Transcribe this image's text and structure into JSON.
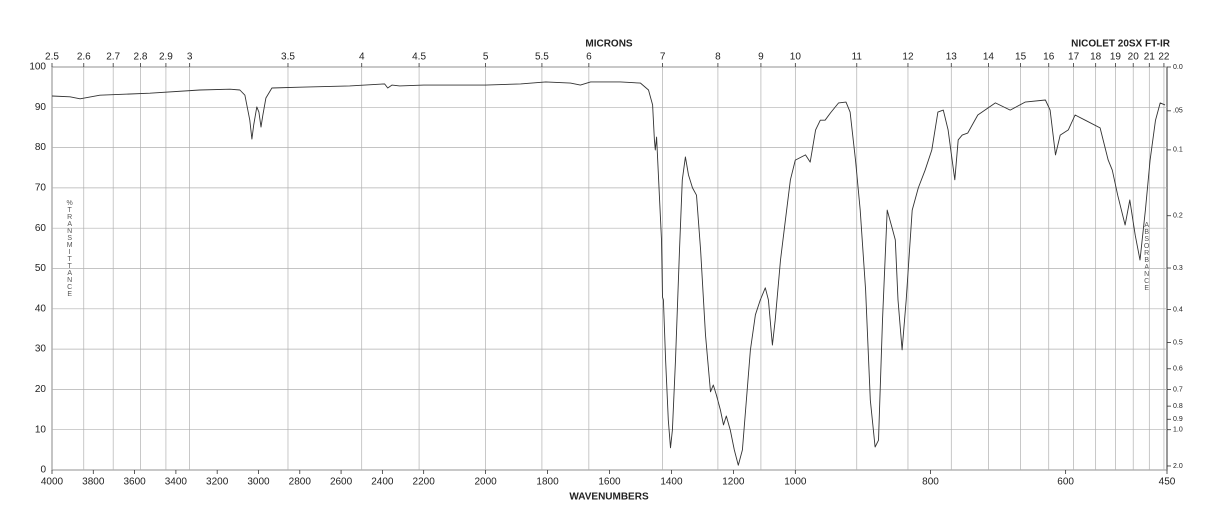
{
  "chart_data": {
    "type": "line",
    "annotation": "NICOLET 20SX FT-IR",
    "xlabel": "WAVENUMBERS",
    "x2label": "MICRONS",
    "ylabel": "%TRANSMITTANCE",
    "y2label": "ABSORBANCE",
    "color": "#333333",
    "grid": true,
    "xlim": [
      4000,
      450
    ],
    "x_scale_breaks": [
      2200,
      1000
    ],
    "xticks": [
      4000,
      3800,
      3600,
      3400,
      3200,
      3000,
      2800,
      2600,
      2400,
      2200,
      2000,
      1800,
      1600,
      1400,
      1200,
      1000,
      800,
      600,
      450
    ],
    "x2ticks": [
      2.5,
      2.6,
      2.7,
      2.8,
      2.9,
      3,
      3.5,
      4,
      4.5,
      5,
      5.5,
      6,
      7,
      8,
      9,
      10,
      11,
      12,
      13,
      14,
      15,
      16,
      17,
      18,
      19,
      20,
      21,
      22
    ],
    "ylim": [
      0,
      100
    ],
    "yticks": [
      0,
      10,
      20,
      30,
      40,
      50,
      60,
      70,
      80,
      90,
      100
    ],
    "y2ticks": [
      {
        "value": 0,
        "label": "0.0"
      },
      {
        "value": 0.05,
        "label": ".05"
      },
      0.1,
      0.2,
      0.3,
      0.4,
      0.5,
      0.6,
      0.7,
      0.8,
      0.9,
      {
        "value": 1,
        "label": "1.0"
      },
      {
        "value": 2,
        "label": "2.0"
      }
    ],
    "x": [
      4000,
      3913,
      3864,
      3768,
      3526,
      3284,
      3138,
      3090,
      3066,
      3042,
      3032,
      3023,
      3008,
      2998,
      2988,
      2979,
      2964,
      2935,
      2800,
      2558,
      2389,
      2374,
      2354,
      2316,
      2200,
      2113,
      2000,
      1887,
      1806,
      1726,
      1694,
      1661,
      1565,
      1500,
      1474,
      1461,
      1455,
      1452,
      1448,
      1442,
      1432,
      1429,
      1426,
      1419,
      1410,
      1403,
      1397,
      1387,
      1374,
      1365,
      1355,
      1345,
      1332,
      1319,
      1306,
      1290,
      1274,
      1265,
      1255,
      1242,
      1232,
      1223,
      1210,
      1197,
      1184,
      1171,
      1158,
      1145,
      1129,
      1113,
      1097,
      1087,
      1074,
      1065,
      1048,
      1032,
      1016,
      1000,
      985,
      978,
      970,
      963,
      956,
      948,
      936,
      925,
      919,
      911,
      904,
      896,
      889,
      882,
      877,
      871,
      864,
      856,
      852,
      848,
      842,
      836,
      827,
      818,
      808,
      798,
      789,
      781,
      774,
      764,
      759,
      753,
      745,
      730,
      704,
      682,
      660,
      630,
      623,
      615,
      608,
      596,
      586,
      571,
      549,
      537,
      531,
      523,
      512,
      505,
      497,
      490,
      482,
      475,
      467,
      460,
      453
    ],
    "values": [
      92.8,
      92.6,
      92.1,
      93.0,
      93.5,
      94.3,
      94.5,
      94.3,
      93.0,
      86.8,
      82.1,
      85.6,
      90.1,
      88.8,
      85.1,
      88.0,
      92.3,
      94.8,
      95.0,
      95.3,
      95.8,
      94.8,
      95.5,
      95.3,
      95.5,
      95.5,
      95.5,
      95.8,
      96.3,
      96.0,
      95.5,
      96.3,
      96.3,
      96.0,
      94.3,
      90.6,
      81.9,
      79.4,
      82.6,
      73.2,
      57.1,
      42.9,
      42.2,
      27.3,
      12.4,
      5.5,
      9.9,
      27.3,
      54.6,
      72.0,
      77.7,
      73.2,
      70.0,
      68.2,
      54.6,
      33.5,
      19.4,
      21.1,
      18.6,
      14.9,
      11.2,
      13.4,
      9.9,
      5.0,
      1.2,
      5.0,
      17.4,
      29.8,
      38.5,
      42.2,
      45.2,
      42.2,
      31.0,
      37.2,
      52.1,
      62.0,
      72.0,
      76.9,
      78.2,
      76.4,
      84.4,
      86.8,
      86.8,
      88.6,
      91.1,
      91.3,
      88.8,
      76.9,
      64.5,
      44.7,
      17.4,
      5.7,
      7.4,
      37.2,
      64.5,
      59.6,
      57.1,
      42.2,
      29.8,
      42.2,
      64.5,
      70.0,
      74.4,
      79.4,
      88.8,
      89.3,
      84.4,
      72.0,
      81.9,
      83.1,
      83.6,
      88.1,
      91.1,
      89.3,
      91.3,
      91.8,
      89.3,
      78.2,
      83.1,
      84.4,
      88.1,
      86.8,
      84.9,
      76.9,
      74.4,
      68.2,
      60.8,
      67.0,
      58.3,
      52.1,
      64.5,
      76.9,
      86.8,
      91.1,
      90.6
    ]
  }
}
